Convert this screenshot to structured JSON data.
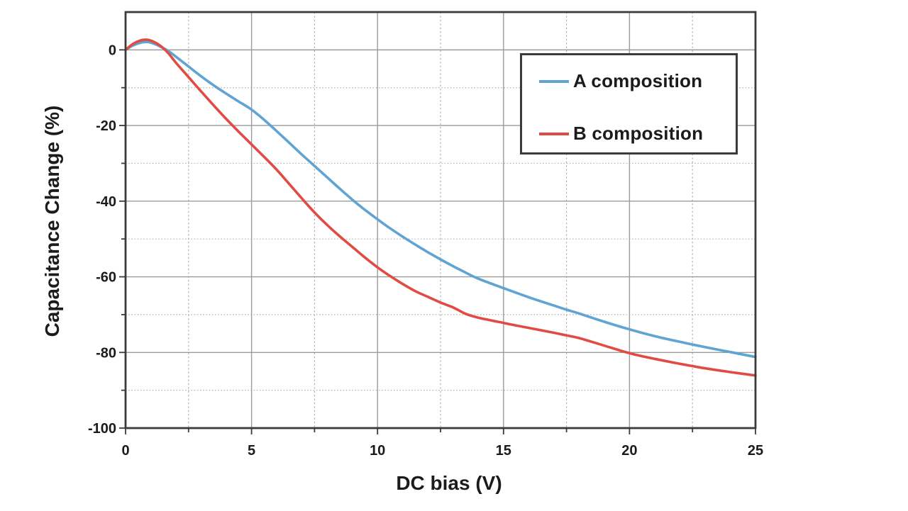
{
  "chart_data": {
    "type": "line",
    "title": "",
    "xlabel": "DC bias (V)",
    "ylabel": "Capacitance Change (%)",
    "xlim": [
      0,
      25
    ],
    "ylim": [
      -100,
      10
    ],
    "xticks": [
      0,
      5,
      10,
      15,
      20,
      25
    ],
    "xtick_labels": [
      "0",
      "5",
      "10",
      "15",
      "20",
      "25"
    ],
    "xticks_minor": [
      2.5,
      7.5,
      12.5,
      17.5,
      22.5
    ],
    "yticks": [
      0,
      -20,
      -40,
      -60,
      -80,
      -100
    ],
    "ytick_labels": [
      "0",
      "-20",
      "-40",
      "-60",
      "-80",
      "-100"
    ],
    "yticks_minor": [
      -10,
      -30,
      -50,
      -70,
      -90
    ],
    "grid": {
      "major": "solid",
      "minor": "dotted"
    },
    "legend_position": "upper-right",
    "series": [
      {
        "name": "A composition",
        "color": "#5fa4d2",
        "x": [
          0,
          0.3,
          0.6,
          0.85,
          1.1,
          1.4,
          1.7,
          2,
          2.5,
          3,
          3.5,
          4,
          4.5,
          5,
          5.5,
          6,
          6.5,
          7,
          7.5,
          8,
          8.5,
          9,
          9.5,
          10,
          10.5,
          11,
          11.5,
          12,
          12.5,
          13,
          13.5,
          14,
          15,
          16,
          17,
          17.5,
          18,
          19,
          20,
          21,
          22,
          22.5,
          23,
          24,
          25
        ],
        "y": [
          0,
          1.2,
          1.9,
          2.1,
          1.7,
          0.8,
          -0.3,
          -1.8,
          -4.4,
          -7.0,
          -9.4,
          -11.6,
          -13.7,
          -15.8,
          -18.5,
          -21.5,
          -24.6,
          -27.7,
          -30.7,
          -33.7,
          -36.7,
          -39.6,
          -42.3,
          -44.8,
          -47.2,
          -49.4,
          -51.5,
          -53.5,
          -55.4,
          -57.2,
          -58.9,
          -60.5,
          -63.0,
          -65.4,
          -67.6,
          -68.7,
          -69.7,
          -71.9,
          -73.9,
          -75.7,
          -77.2,
          -77.9,
          -78.6,
          -79.9,
          -81.2
        ]
      },
      {
        "name": "B composition",
        "color": "#e04c43",
        "x": [
          0,
          0.3,
          0.6,
          0.85,
          1.1,
          1.4,
          1.7,
          2,
          2.5,
          3,
          3.5,
          4,
          4.5,
          5,
          5.5,
          6,
          6.5,
          7,
          7.5,
          8,
          8.5,
          9,
          9.5,
          10,
          10.5,
          11,
          11.5,
          12,
          12.5,
          13,
          13.5,
          14,
          15,
          16,
          17,
          17.5,
          18,
          19,
          20,
          21,
          22,
          22.5,
          23,
          24,
          25
        ],
        "y": [
          0,
          1.6,
          2.5,
          2.7,
          2.2,
          1.0,
          -0.9,
          -3.4,
          -7.2,
          -11.0,
          -14.7,
          -18.3,
          -21.7,
          -25.0,
          -28.3,
          -31.7,
          -35.5,
          -39.3,
          -43.0,
          -46.3,
          -49.3,
          -52.1,
          -54.9,
          -57.5,
          -59.8,
          -61.9,
          -63.8,
          -65.3,
          -66.8,
          -68.1,
          -69.8,
          -70.8,
          -72.2,
          -73.5,
          -74.8,
          -75.5,
          -76.2,
          -78.2,
          -80.2,
          -81.7,
          -83.0,
          -83.6,
          -84.2,
          -85.2,
          -86.1
        ]
      }
    ]
  }
}
